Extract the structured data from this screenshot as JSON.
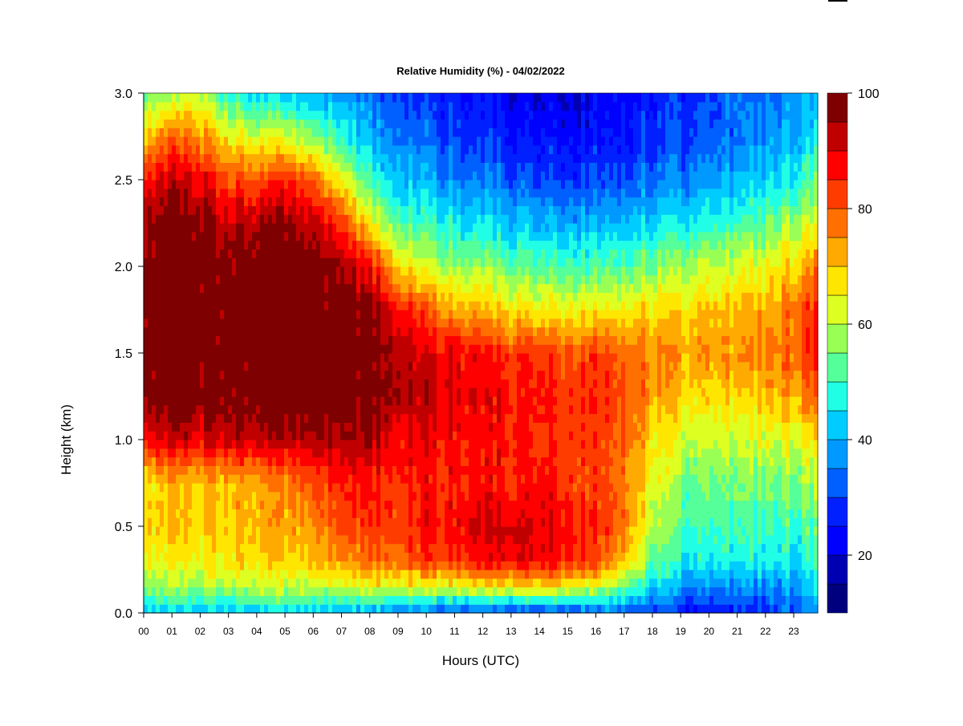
{
  "chart_data": {
    "type": "heatmap",
    "title": "Relative Humidity (%) - 04/02/2022",
    "xlabel": "Hours (UTC)",
    "ylabel": "Height (km)",
    "x_ticks": [
      "00",
      "01",
      "02",
      "03",
      "04",
      "05",
      "06",
      "07",
      "08",
      "09",
      "10",
      "11",
      "12",
      "13",
      "14",
      "15",
      "16",
      "17",
      "18",
      "19",
      "20",
      "21",
      "22",
      "23"
    ],
    "xlim": [
      0,
      23.85
    ],
    "y_ticks": [
      "0.0",
      "0.5",
      "1.0",
      "1.5",
      "2.0",
      "2.5",
      "3.0"
    ],
    "ylim": [
      0,
      3.0
    ],
    "colorbar": {
      "ticks": [
        "20",
        "40",
        "60",
        "80",
        "100"
      ],
      "range": [
        10,
        100
      ],
      "step": 5,
      "colors": [
        "#00007F",
        "#0000B2",
        "#0000FF",
        "#0020FF",
        "#0060FF",
        "#0099FF",
        "#00CCFF",
        "#20FFE6",
        "#55FF99",
        "#99FF55",
        "#DDFF22",
        "#FFE600",
        "#FFAA00",
        "#FF7000",
        "#FF3C00",
        "#FF0000",
        "#C00000",
        "#7F0000"
      ]
    },
    "grid": false,
    "time_hours": [
      0,
      1,
      2,
      3,
      4,
      5,
      6,
      7,
      8,
      9,
      10,
      11,
      12,
      13,
      14,
      15,
      16,
      17,
      18,
      19,
      20,
      21,
      22,
      23,
      23.8
    ],
    "heights_km": [
      0.0,
      0.15,
      0.3,
      0.5,
      0.75,
      1.0,
      1.25,
      1.5,
      1.75,
      2.0,
      2.25,
      2.5,
      2.75,
      3.0
    ],
    "rh_percent": [
      [
        42,
        58,
        66,
        70,
        68,
        88,
        98,
        99,
        99,
        99,
        97,
        88,
        72,
        55
      ],
      [
        42,
        58,
        66,
        70,
        70,
        92,
        99,
        99,
        99,
        99,
        99,
        92,
        78,
        58
      ],
      [
        42,
        58,
        66,
        70,
        70,
        90,
        99,
        99,
        99,
        99,
        97,
        90,
        76,
        62
      ],
      [
        42,
        60,
        68,
        70,
        72,
        92,
        99,
        99,
        99,
        99,
        94,
        82,
        66,
        48
      ],
      [
        42,
        60,
        68,
        72,
        72,
        92,
        99,
        99,
        99,
        99,
        94,
        82,
        62,
        44
      ],
      [
        42,
        60,
        68,
        72,
        74,
        93,
        99,
        99,
        99,
        99,
        95,
        84,
        62,
        42
      ],
      [
        42,
        60,
        70,
        74,
        80,
        94,
        99,
        99,
        99,
        99,
        92,
        78,
        56,
        40
      ],
      [
        40,
        62,
        76,
        82,
        86,
        95,
        99,
        99,
        99,
        96,
        84,
        66,
        48,
        38
      ],
      [
        38,
        64,
        78,
        84,
        86,
        94,
        99,
        99,
        97,
        88,
        66,
        50,
        40,
        34
      ],
      [
        36,
        64,
        80,
        84,
        86,
        90,
        96,
        95,
        88,
        70,
        54,
        42,
        36,
        30
      ],
      [
        34,
        64,
        82,
        86,
        86,
        88,
        92,
        90,
        80,
        62,
        50,
        40,
        32,
        28
      ],
      [
        32,
        64,
        84,
        88,
        86,
        88,
        90,
        90,
        74,
        58,
        46,
        36,
        30,
        26
      ],
      [
        30,
        66,
        86,
        90,
        86,
        86,
        88,
        86,
        70,
        56,
        44,
        34,
        28,
        24
      ],
      [
        28,
        68,
        88,
        92,
        86,
        86,
        86,
        84,
        68,
        54,
        42,
        32,
        26,
        22
      ],
      [
        28,
        68,
        88,
        90,
        86,
        84,
        86,
        84,
        66,
        52,
        40,
        30,
        24,
        20
      ],
      [
        30,
        66,
        86,
        88,
        84,
        84,
        84,
        82,
        66,
        52,
        40,
        30,
        24,
        20
      ],
      [
        32,
        62,
        82,
        84,
        82,
        82,
        84,
        82,
        66,
        52,
        40,
        30,
        24,
        22
      ],
      [
        32,
        56,
        72,
        78,
        78,
        80,
        82,
        80,
        66,
        54,
        42,
        32,
        26,
        24
      ],
      [
        30,
        44,
        54,
        60,
        64,
        68,
        74,
        76,
        68,
        56,
        44,
        34,
        28,
        26
      ],
      [
        26,
        38,
        48,
        52,
        56,
        62,
        70,
        74,
        68,
        58,
        46,
        36,
        30,
        28
      ],
      [
        24,
        36,
        46,
        50,
        54,
        60,
        68,
        74,
        70,
        60,
        48,
        38,
        32,
        30
      ],
      [
        26,
        36,
        46,
        50,
        54,
        60,
        68,
        74,
        70,
        62,
        50,
        40,
        34,
        32
      ],
      [
        28,
        36,
        46,
        50,
        54,
        62,
        70,
        76,
        72,
        64,
        52,
        42,
        36,
        34
      ],
      [
        32,
        38,
        46,
        50,
        56,
        64,
        74,
        80,
        78,
        70,
        58,
        48,
        40,
        38
      ],
      [
        36,
        42,
        48,
        52,
        58,
        66,
        78,
        84,
        84,
        76,
        62,
        52,
        44,
        40
      ]
    ]
  }
}
